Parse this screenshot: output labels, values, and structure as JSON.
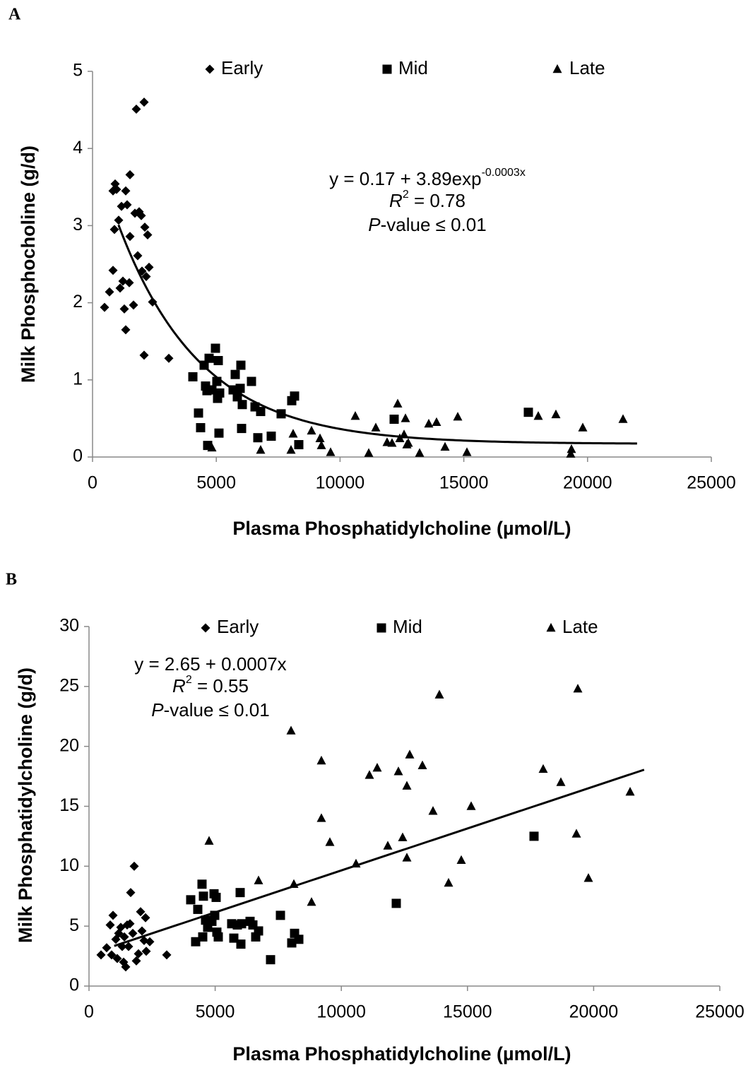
{
  "chart_data": [
    {
      "type": "scatter",
      "panel": "A",
      "xlabel": "Plasma Phosphatidylcholine (µmol/L)",
      "ylabel": "Milk Phosphocholine (g/d)",
      "xlim": [
        0,
        25000
      ],
      "xticks": [
        0,
        5000,
        10000,
        15000,
        20000,
        25000
      ],
      "ylim": [
        0,
        5
      ],
      "yticks": [
        0,
        1,
        2,
        3,
        4,
        5
      ],
      "grid": false,
      "series": [
        {
          "name": "Early",
          "marker": "diamond",
          "color": "#000000",
          "x": [
            485,
            685,
            828,
            885,
            828,
            913,
            970,
            1056,
            1113,
            1170,
            1227,
            1284,
            1341,
            1341,
            1398,
            1484,
            1513,
            1513,
            1655,
            1712,
            1769,
            1826,
            1884,
            1969,
            1998,
            2083,
            2112,
            2083,
            2169,
            2226,
            2283,
            2426,
            3082
          ],
          "values": [
            1.94,
            2.14,
            2.42,
            2.95,
            3.45,
            3.54,
            3.47,
            3.07,
            2.19,
            3.25,
            2.28,
            1.92,
            1.65,
            3.45,
            3.27,
            2.26,
            2.86,
            3.66,
            1.97,
            3.16,
            4.51,
            2.61,
            3.18,
            3.13,
            2.41,
            4.6,
            2.98,
            1.32,
            2.34,
            2.88,
            2.46,
            2.01,
            1.28
          ]
        },
        {
          "name": "Mid",
          "marker": "square",
          "color": "#000000",
          "x": [
            4053,
            4281,
            4366,
            4509,
            4566,
            4623,
            4652,
            4709,
            4823,
            4966,
            5023,
            5051,
            5080,
            5108,
            5137,
            5679,
            5765,
            5850,
            5965,
            5993,
            6022,
            6050,
            6421,
            6564,
            6678,
            6792,
            7220,
            7620,
            8048,
            8162,
            8333,
            12186,
            17608
          ],
          "values": [
            1.04,
            0.57,
            0.38,
            1.19,
            0.92,
            0.86,
            0.15,
            1.28,
            0.87,
            1.41,
            0.98,
            0.76,
            1.25,
            0.31,
            0.83,
            0.87,
            1.07,
            0.78,
            0.89,
            1.19,
            0.37,
            0.68,
            0.98,
            0.65,
            0.25,
            0.59,
            0.27,
            0.56,
            0.73,
            0.79,
            0.16,
            0.49,
            0.58
          ]
        },
        {
          "name": "Late",
          "marker": "triangle",
          "color": "#000000",
          "x": [
            4823,
            6792,
            8019,
            8105,
            8847,
            9190,
            9247,
            9618,
            10616,
            11159,
            11444,
            11900,
            12100,
            12329,
            12414,
            12586,
            12643,
            12700,
            12757,
            13214,
            13584,
            13898,
            14241,
            14755,
            15126,
            18008,
            18721,
            19349,
            19320,
            19806,
            21433
          ],
          "values": [
            0.12,
            0.09,
            0.09,
            0.3,
            0.34,
            0.24,
            0.15,
            0.06,
            0.53,
            0.05,
            0.38,
            0.19,
            0.18,
            0.69,
            0.24,
            0.29,
            0.5,
            0.16,
            0.18,
            0.05,
            0.43,
            0.45,
            0.13,
            0.52,
            0.06,
            0.53,
            0.55,
            0.1,
            0.04,
            0.38,
            0.49
          ]
        }
      ],
      "fit": {
        "model": "exponential",
        "a": 0.17,
        "b": 3.89,
        "c": -0.0003,
        "xrange": [
          1050,
          22000
        ]
      },
      "annotation": [
        [
          {
            "text": "y = 0.17 + 3.89exp"
          },
          {
            "sup": "-0.0003x"
          }
        ],
        [
          {
            "italic": "R"
          },
          {
            "sup": "2"
          },
          {
            "text": " = 0.78"
          }
        ],
        [
          {
            "italic": "P"
          },
          {
            "text": "-value ≤ 0.01"
          }
        ]
      ]
    },
    {
      "type": "scatter",
      "panel": "B",
      "xlabel": "Plasma Phosphatidylcholine (µmol/L)",
      "ylabel": "Milk Phosphatidylcholine (g/d)",
      "xlim": [
        0,
        25000
      ],
      "xticks": [
        0,
        5000,
        10000,
        15000,
        20000,
        25000
      ],
      "ylim": [
        0,
        30
      ],
      "yticks": [
        0,
        5,
        10,
        15,
        20,
        25,
        30
      ],
      "grid": false,
      "series": [
        {
          "name": "Early",
          "marker": "diamond",
          "color": "#000000",
          "x": [
            476,
            700,
            840,
            952,
            896,
            1064,
            1120,
            1176,
            1260,
            1316,
            1372,
            1400,
            1456,
            1512,
            1568,
            1624,
            1652,
            1736,
            1792,
            1876,
            1960,
            2044,
            2100,
            2184,
            2240,
            2268,
            2408,
            3080
          ],
          "values": [
            2.6,
            3.2,
            5.1,
            5.9,
            2.6,
            3.9,
            2.3,
            4.4,
            4.9,
            3.3,
            2.0,
            4.1,
            1.6,
            5.1,
            3.3,
            5.2,
            7.8,
            4.4,
            10.0,
            2.1,
            2.7,
            6.2,
            4.6,
            3.8,
            5.7,
            2.9,
            3.7,
            2.6
          ]
        },
        {
          "name": "Mid",
          "marker": "square",
          "color": "#000000",
          "x": [
            4031,
            4311,
            4227,
            4479,
            4535,
            4507,
            4619,
            4703,
            4871,
            4955,
            4983,
            5039,
            5067,
            5123,
            5655,
            5739,
            5879,
            6019,
            5991,
            6047,
            6383,
            6495,
            6607,
            6719,
            7195,
            7587,
            8035,
            8147,
            8315,
            12178,
            17637
          ],
          "values": [
            7.2,
            6.4,
            3.7,
            8.5,
            7.5,
            4.1,
            5.5,
            4.9,
            5.4,
            7.7,
            5.9,
            7.4,
            4.5,
            4.1,
            5.2,
            4.0,
            5.1,
            3.5,
            7.8,
            5.2,
            5.4,
            5.1,
            4.1,
            4.6,
            2.2,
            5.9,
            3.6,
            4.4,
            3.9,
            6.9,
            12.5
          ]
        },
        {
          "name": "Late",
          "marker": "triangle",
          "color": "#000000",
          "x": [
            4759,
            6719,
            8007,
            8119,
            8819,
            9210,
            9210,
            9546,
            10582,
            11114,
            11422,
            11842,
            12262,
            12430,
            12598,
            12598,
            12710,
            13214,
            13634,
            13886,
            14250,
            14754,
            15146,
            18001,
            18701,
            19317,
            19373,
            19793,
            21445
          ],
          "values": [
            12.1,
            8.8,
            21.3,
            8.5,
            7.0,
            18.8,
            14.0,
            12.0,
            10.2,
            17.6,
            18.2,
            11.7,
            17.9,
            12.4,
            16.7,
            10.7,
            19.3,
            18.4,
            14.6,
            24.3,
            8.6,
            10.5,
            15.0,
            18.1,
            17.0,
            12.7,
            24.8,
            9.0,
            16.2
          ]
        }
      ],
      "fit": {
        "model": "linear",
        "a": 2.65,
        "b": 0.0007,
        "xrange": [
          1000,
          22000
        ]
      },
      "annotation": [
        [
          {
            "text": "y = 2.65 + 0.0007x"
          }
        ],
        [
          {
            "italic": "R"
          },
          {
            "sup": "2"
          },
          {
            "text": " = 0.55"
          }
        ],
        [
          {
            "italic": "P"
          },
          {
            "text": "-value ≤ 0.01"
          }
        ]
      ]
    }
  ]
}
